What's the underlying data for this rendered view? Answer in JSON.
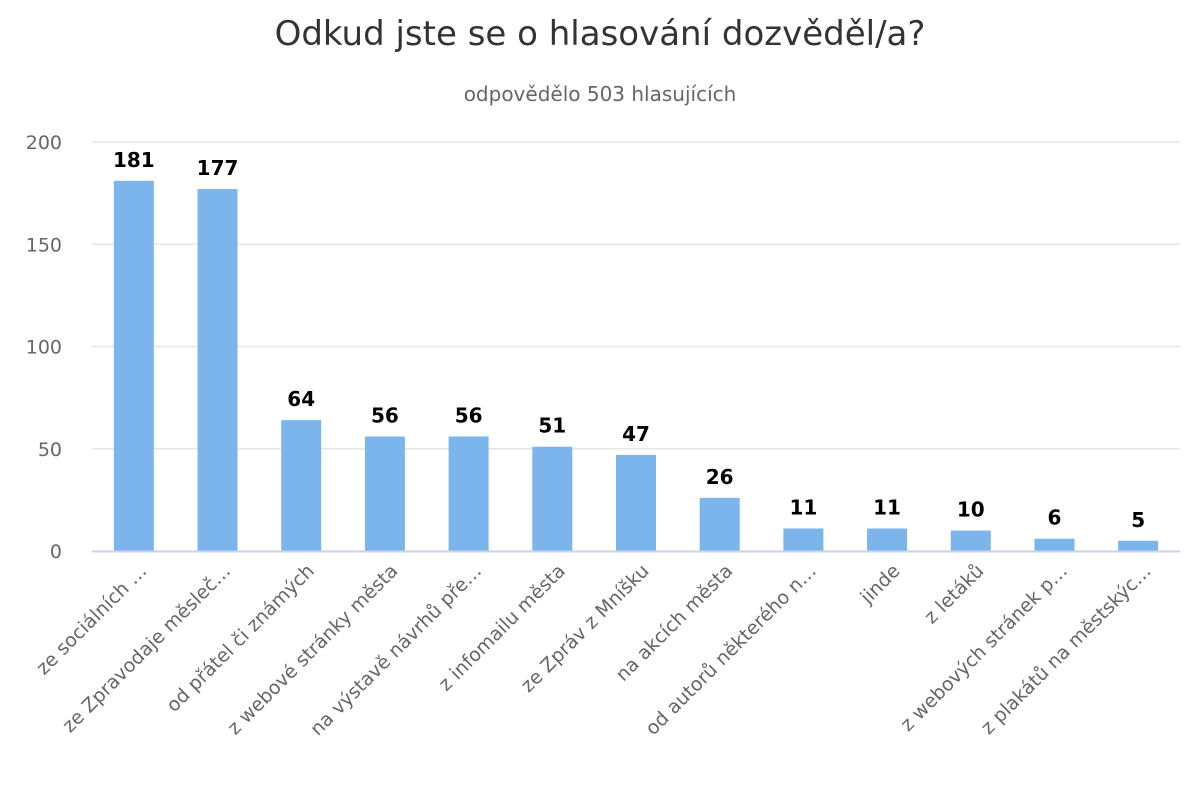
{
  "chart_data": {
    "type": "bar",
    "title": "Odkud jste se o hlasování dozvěděl/a?",
    "subtitle": "odpovědělo 503 hlasujících",
    "categories": [
      "ze sociálních …",
      "ze Zpravodaje měsleč…",
      "od přátel či známých",
      "z webové stránky města",
      "na výstavě návrhů pře…",
      "z infomailu města",
      "ze Zpráv z Mníšku",
      "na akcích města",
      "od autorů některého n…",
      "jinde",
      "z letáků",
      "z webových stránek p…",
      "z plakátů na městskýc…"
    ],
    "values": [
      181,
      177,
      64,
      56,
      56,
      51,
      47,
      26,
      11,
      11,
      10,
      6,
      5
    ],
    "yticks": [
      "0",
      "50",
      "100",
      "150",
      "200"
    ],
    "ylim": [
      0,
      200
    ],
    "grid": true,
    "bar_color": "#7cb5ec"
  }
}
